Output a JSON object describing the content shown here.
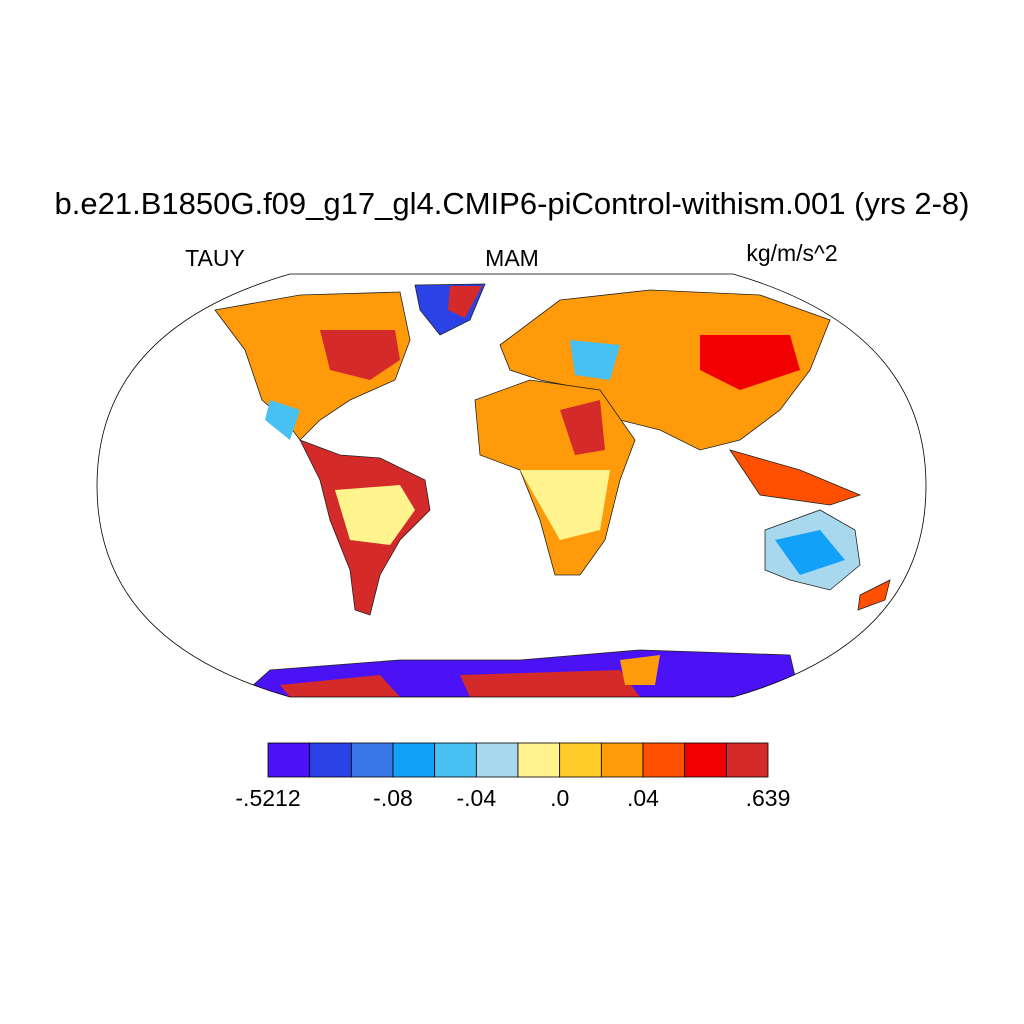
{
  "header": {
    "title": "b.e21.B1850G.f09_g17_gl4.CMIP6-piControl-withism.001 (yrs 2-8)",
    "left": "TAUY",
    "center": "MAM",
    "right": "kg/m/s^2"
  },
  "colorbar": {
    "colors": [
      "#4a12f5",
      "#2a42e6",
      "#3a78ea",
      "#12a0f8",
      "#48c0f2",
      "#a8d8ee",
      "#fff48e",
      "#ffcc2a",
      "#ff9a0a",
      "#ff5000",
      "#f00000",
      "#d42a2a"
    ],
    "ticks": [
      {
        "value": -0.5212,
        "label": "-.5212"
      },
      {
        "value": -0.08,
        "label": "-.08"
      },
      {
        "value": -0.04,
        "label": "-.04"
      },
      {
        "value": 0,
        "label": ".0"
      },
      {
        "value": 0.04,
        "label": ".04"
      },
      {
        "value": 0.639,
        "label": ".639"
      }
    ]
  }
}
